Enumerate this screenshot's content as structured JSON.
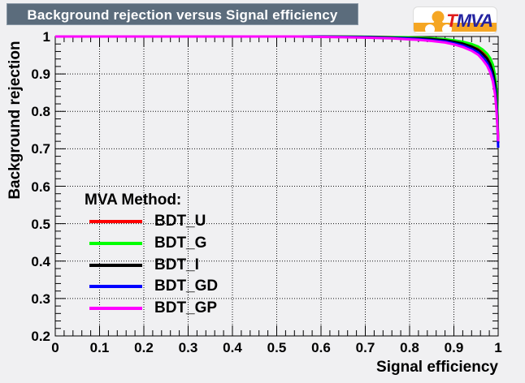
{
  "title": "Background rejection versus Signal efficiency",
  "logo": {
    "t": "T",
    "mva": "MVA"
  },
  "colors": {
    "canvas_bg": "#f0f0f2",
    "title_bar_bg": "#5b6c7c",
    "frame_stroke": "#000000",
    "grid_stroke": "#111111",
    "logo_orange": "#f5a623",
    "logo_t_red": "#e01b1b",
    "logo_mva_navy": "#2323a0"
  },
  "chart_data": {
    "type": "line",
    "title": "Background rejection versus Signal efficiency",
    "xlabel": "Signal efficiency",
    "ylabel": "Background rejection",
    "xlim": [
      0,
      1
    ],
    "ylim": [
      0.2,
      1.0
    ],
    "grid": "dotted",
    "legend_title": "MVA Method:",
    "legend_position": "inside-bottom-left",
    "x_tick_values": [
      0,
      0.1,
      0.2,
      0.3,
      0.4,
      0.5,
      0.6,
      0.7,
      0.8,
      0.9,
      1
    ],
    "x_tick_labels": [
      "0",
      "0.1",
      "0.2",
      "0.3",
      "0.4",
      "0.5",
      "0.6",
      "0.7",
      "0.8",
      "0.9",
      "1"
    ],
    "y_tick_values": [
      0.2,
      0.3,
      0.4,
      0.5,
      0.6,
      0.7,
      0.8,
      0.9,
      1
    ],
    "y_tick_labels": [
      "0.2",
      "0.3",
      "0.4",
      "0.5",
      "0.6",
      "0.7",
      "0.8",
      "0.9",
      "1"
    ],
    "minor_tick_step": 0.02,
    "x": [
      0,
      0.05,
      0.1,
      0.15,
      0.2,
      0.25,
      0.3,
      0.35,
      0.4,
      0.45,
      0.5,
      0.55,
      0.6,
      0.65,
      0.7,
      0.73,
      0.76,
      0.79,
      0.82,
      0.85,
      0.88,
      0.9,
      0.92,
      0.94,
      0.955,
      0.965,
      0.975,
      0.982,
      0.988,
      0.993,
      0.996,
      0.998,
      1.0
    ],
    "series": [
      {
        "name": "BDT_U",
        "color": "#ff0000",
        "values": [
          1,
          1,
          1,
          1,
          1,
          1,
          1,
          1,
          1,
          1,
          1,
          1,
          1,
          0.9995,
          0.999,
          0.9985,
          0.998,
          0.997,
          0.996,
          0.994,
          0.991,
          0.988,
          0.983,
          0.976,
          0.968,
          0.959,
          0.947,
          0.934,
          0.915,
          0.885,
          0.845,
          0.8,
          0.72
        ]
      },
      {
        "name": "BDT_G",
        "color": "#00ff00",
        "values": [
          1,
          1,
          1,
          1,
          1,
          1,
          1,
          1,
          1,
          1,
          1,
          1,
          1,
          1,
          0.9995,
          0.999,
          0.9985,
          0.998,
          0.997,
          0.9955,
          0.993,
          0.99,
          0.986,
          0.98,
          0.973,
          0.965,
          0.954,
          0.942,
          0.925,
          0.896,
          0.86,
          0.815,
          0.715
        ]
      },
      {
        "name": "BDT_I",
        "color": "#000000",
        "values": [
          1,
          1,
          1,
          1,
          1,
          1,
          1,
          1,
          1,
          1,
          1,
          1,
          1,
          0.9995,
          0.999,
          0.998,
          0.997,
          0.996,
          0.995,
          0.993,
          0.99,
          0.986,
          0.981,
          0.973,
          0.964,
          0.954,
          0.941,
          0.926,
          0.906,
          0.874,
          0.833,
          0.79,
          0.715
        ]
      },
      {
        "name": "BDT_GD",
        "color": "#0000ff",
        "values": [
          1,
          1,
          1,
          1,
          1,
          1,
          1,
          1,
          1,
          1,
          1,
          1,
          0.9995,
          0.999,
          0.998,
          0.997,
          0.996,
          0.995,
          0.993,
          0.99,
          0.987,
          0.982,
          0.976,
          0.967,
          0.957,
          0.945,
          0.93,
          0.913,
          0.89,
          0.856,
          0.815,
          0.77,
          0.703
        ]
      },
      {
        "name": "BDT_GP",
        "color": "#ff00ff",
        "values": [
          1,
          1,
          1,
          1,
          1,
          1,
          1,
          1,
          1,
          1,
          1,
          1,
          0.999,
          0.998,
          0.997,
          0.996,
          0.995,
          0.993,
          0.991,
          0.988,
          0.984,
          0.979,
          0.972,
          0.962,
          0.951,
          0.938,
          0.922,
          0.904,
          0.88,
          0.845,
          0.805,
          0.765,
          0.72
        ]
      }
    ]
  }
}
